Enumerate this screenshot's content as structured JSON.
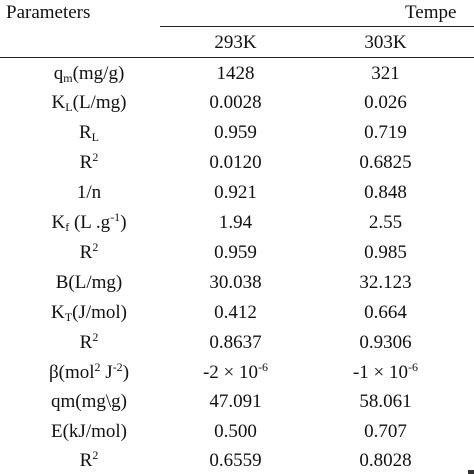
{
  "header": {
    "parameters": "Parameters",
    "temperature_partial": "Tempe",
    "t1": "293K",
    "t2": "303K"
  },
  "rows": [
    {
      "label": "qm(mg/g)",
      "v1": "1428",
      "v2": "321"
    },
    {
      "label": "KL(L/mg)",
      "v1": "0.0028",
      "v2": "0.026"
    },
    {
      "label": "RL",
      "v1": "0.959",
      "v2": "0.719"
    },
    {
      "label": "R2",
      "v1": "0.0120",
      "v2": "0.6825"
    },
    {
      "label": "1/n",
      "v1": "0.921",
      "v2": "0.848"
    },
    {
      "label": "Kf (L .g-1)",
      "v1": "1.94",
      "v2": "2.55"
    },
    {
      "label": "R2",
      "v1": "0.959",
      "v2": "0.985"
    },
    {
      "label": "B(L/mg)",
      "v1": "30.038",
      "v2": "32.123"
    },
    {
      "label": "KT(J/mol)",
      "v1": "0.412",
      "v2": "0.664"
    },
    {
      "label": "R2",
      "v1": "0.8637",
      "v2": "0.9306"
    },
    {
      "label": "β(mol2 J-2)",
      "v1": "-2 × 10-6",
      "v2": "-1 × 10-6"
    },
    {
      "label": "qm(mg\\g)",
      "v1": "47.091",
      "v2": "58.061"
    },
    {
      "label": "E(kJ/mol)",
      "v1": "0.500",
      "v2": "0.707"
    },
    {
      "label": "R2",
      "v1": "0.6559",
      "v2": "0.8028"
    }
  ],
  "label_parts": {
    "qm": {
      "base": "q",
      "sub": "m",
      "rest": "(mg/g)"
    },
    "kl": {
      "base": "K",
      "sub": "L",
      "rest": "(L/mg)"
    },
    "rl": {
      "base": "R",
      "sub": "L"
    },
    "r2": {
      "base": "R",
      "sup": "2"
    },
    "kf": {
      "base": "K",
      "sub": "f",
      "rest": " (L .g",
      "sup": "-1",
      "end": ")"
    },
    "kt": {
      "base": "K",
      "sub": "T",
      "rest": "(J/mol)"
    },
    "beta": {
      "base": "β(mol",
      "sup1": "2",
      "mid": " J",
      "sup2": "-2",
      "end": ")"
    },
    "exp1": {
      "base": "-2 × 10",
      "sup": "-6"
    },
    "exp2": {
      "base": "-1 × 10",
      "sup": "-6"
    }
  }
}
